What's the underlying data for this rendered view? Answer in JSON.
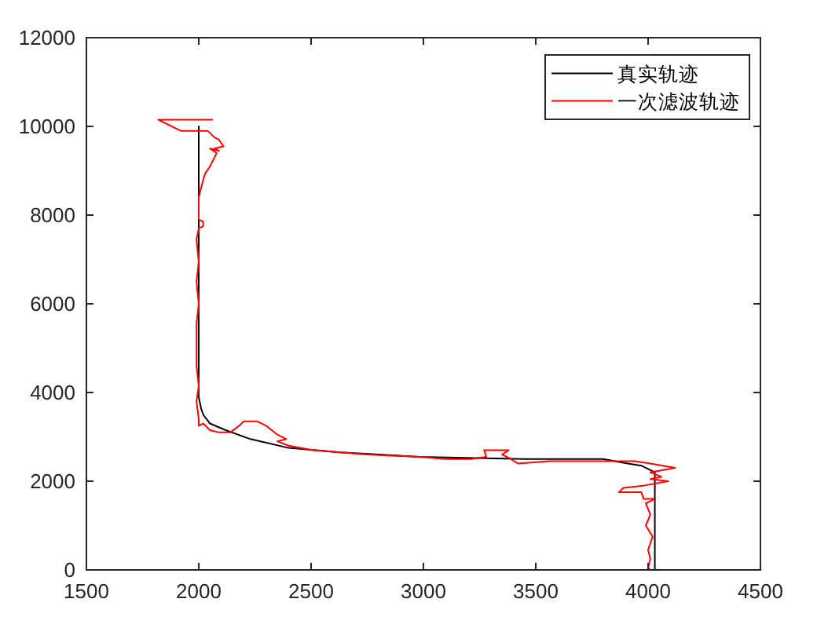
{
  "chart_data": {
    "type": "line",
    "xlim": [
      1500,
      4500
    ],
    "ylim": [
      0,
      12000
    ],
    "xticks": [
      1500,
      2000,
      2500,
      3000,
      3500,
      4000,
      4500
    ],
    "yticks": [
      0,
      2000,
      4000,
      6000,
      8000,
      10000,
      12000
    ],
    "legend": "top right",
    "series": [
      {
        "name": "真实轨迹",
        "color": "#000000",
        "x": [
          2000,
          2000,
          2010,
          2020,
          2050,
          2120,
          2230,
          2400,
          2630,
          2980,
          3450,
          3800,
          3910,
          3970,
          4010,
          4030,
          4030
        ],
        "values": [
          10000,
          3900,
          3650,
          3500,
          3300,
          3150,
          2950,
          2750,
          2650,
          2550,
          2500,
          2500,
          2400,
          2350,
          2250,
          2200,
          0
        ]
      },
      {
        "name": "一次滤波轨迹",
        "color": "#ff0000",
        "x": [
          2060,
          1820,
          1920,
          2040,
          2070,
          2090,
          2110,
          2070,
          2090,
          2050,
          2080,
          2070,
          2050,
          2030,
          2020,
          2010,
          2000,
          2000,
          2000,
          2020,
          2020,
          2000,
          1990,
          2000,
          1990,
          2000,
          1990,
          1990,
          1990,
          2000,
          1990,
          2000,
          2000,
          2020,
          2050,
          2090,
          2140,
          2180,
          2200,
          2220,
          2260,
          2300,
          2350,
          2390,
          2350,
          2400,
          2510,
          2750,
          2980,
          3100,
          3210,
          3280,
          3270,
          3330,
          3380,
          3350,
          3390,
          3420,
          3560,
          3800,
          3940,
          4010,
          4120,
          4010,
          4060,
          4010,
          4090,
          3980,
          3890,
          3870,
          3970,
          3980,
          4030,
          3990,
          4010,
          3990,
          4020,
          4000,
          4010,
          4000,
          4010
        ],
        "values": [
          10150,
          10150,
          9900,
          9900,
          9750,
          9700,
          9550,
          9500,
          9450,
          9500,
          9400,
          9300,
          9100,
          8950,
          8800,
          8600,
          8400,
          8150,
          7900,
          7850,
          7750,
          7700,
          7450,
          6950,
          6500,
          6000,
          5550,
          5050,
          4600,
          4150,
          3800,
          3400,
          3250,
          3300,
          3150,
          3100,
          3100,
          3250,
          3350,
          3350,
          3350,
          3250,
          3050,
          2950,
          2900,
          2800,
          2700,
          2600,
          2550,
          2500,
          2500,
          2550,
          2700,
          2700,
          2700,
          2600,
          2500,
          2400,
          2450,
          2450,
          2450,
          2400,
          2300,
          2200,
          2100,
          2050,
          2000,
          1900,
          1850,
          1750,
          1750,
          1600,
          1600,
          1500,
          1250,
          1000,
          750,
          450,
          250,
          50,
          0
        ]
      }
    ]
  }
}
